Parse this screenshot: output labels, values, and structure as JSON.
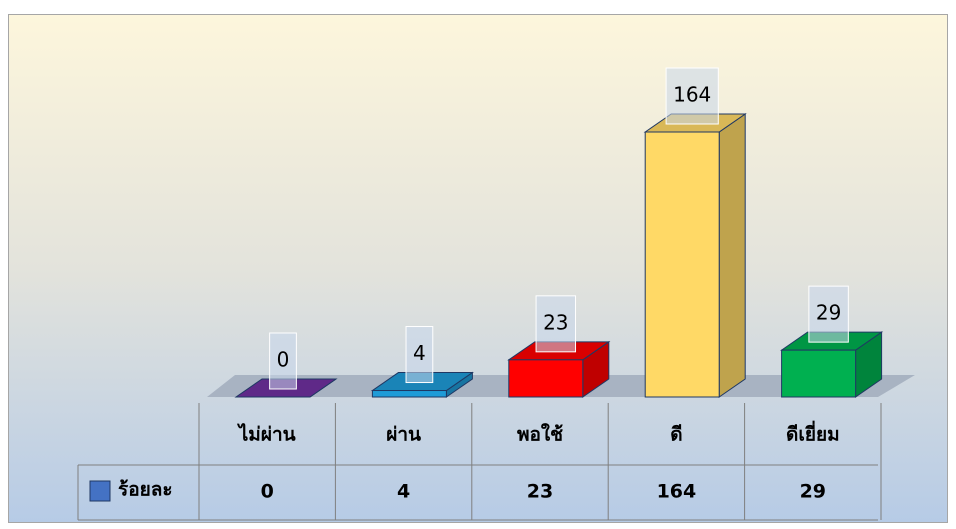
{
  "chart_data": {
    "type": "bar3d",
    "categories": [
      "ไม่ผ่าน",
      "ผ่าน",
      "พอใช้",
      "ดี",
      "ดีเยี่ยม"
    ],
    "series": [
      {
        "name": "ร้อยละ",
        "color": "#4472c4",
        "values": [
          0,
          4,
          23,
          164,
          29
        ]
      }
    ],
    "colors": [
      "#7030a0",
      "#1e9bd7",
      "#ff0000",
      "#ffd966",
      "#00b050"
    ]
  }
}
